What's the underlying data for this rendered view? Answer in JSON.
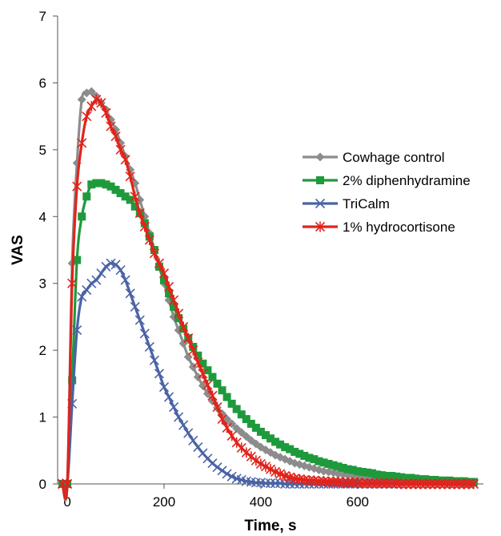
{
  "chart_data": {
    "type": "line",
    "xlabel": "Time, s",
    "ylabel": "VAS",
    "xlim": [
      -20,
      860
    ],
    "ylim": [
      0,
      7
    ],
    "xticks": [
      0,
      200,
      400,
      600
    ],
    "yticks": [
      0,
      1,
      2,
      3,
      4,
      5,
      6,
      7
    ],
    "legend_position": "right",
    "series": [
      {
        "name": "Cowhage control",
        "color": "#8c8c8c",
        "marker": "diamond",
        "x": [
          -10,
          0,
          10,
          20,
          30,
          40,
          50,
          60,
          70,
          80,
          90,
          100,
          110,
          120,
          130,
          140,
          150,
          160,
          170,
          180,
          190,
          200,
          210,
          220,
          230,
          240,
          250,
          260,
          270,
          280,
          290,
          300,
          310,
          320,
          330,
          340,
          350,
          360,
          370,
          380,
          390,
          400,
          410,
          420,
          430,
          440,
          450,
          460,
          470,
          480,
          490,
          500,
          510,
          520,
          530,
          540,
          550,
          560,
          570,
          580,
          590,
          600,
          610,
          620,
          630,
          640,
          650,
          660,
          670,
          680,
          690,
          700,
          710,
          720,
          730,
          740,
          750,
          760,
          770,
          780,
          790,
          800,
          810,
          820,
          830,
          840
        ],
        "y": [
          0,
          0,
          3.3,
          4.8,
          5.75,
          5.85,
          5.87,
          5.8,
          5.7,
          5.6,
          5.45,
          5.3,
          5.1,
          4.9,
          4.7,
          4.5,
          4.25,
          4.0,
          3.75,
          3.5,
          3.25,
          3.0,
          2.75,
          2.5,
          2.3,
          2.1,
          1.9,
          1.75,
          1.6,
          1.47,
          1.35,
          1.24,
          1.14,
          1.05,
          0.97,
          0.9,
          0.83,
          0.77,
          0.71,
          0.65,
          0.6,
          0.55,
          0.51,
          0.47,
          0.43,
          0.4,
          0.37,
          0.34,
          0.31,
          0.29,
          0.27,
          0.25,
          0.23,
          0.21,
          0.19,
          0.18,
          0.17,
          0.15,
          0.14,
          0.13,
          0.12,
          0.11,
          0.1,
          0.09,
          0.09,
          0.08,
          0.07,
          0.07,
          0.06,
          0.06,
          0.05,
          0.05,
          0.04,
          0.04,
          0.04,
          0.03,
          0.03,
          0.03,
          0.03,
          0.02,
          0.02,
          0.02,
          0.02,
          0.01,
          0.01,
          0.01
        ]
      },
      {
        "name": "2% diphenhydramine",
        "color": "#1e9a3c",
        "marker": "square",
        "x": [
          -10,
          0,
          10,
          20,
          30,
          40,
          50,
          60,
          70,
          80,
          90,
          100,
          110,
          120,
          130,
          140,
          150,
          160,
          170,
          180,
          190,
          200,
          210,
          220,
          230,
          240,
          250,
          260,
          270,
          280,
          290,
          300,
          310,
          320,
          330,
          340,
          350,
          360,
          370,
          380,
          390,
          400,
          410,
          420,
          430,
          440,
          450,
          460,
          470,
          480,
          490,
          500,
          510,
          520,
          530,
          540,
          550,
          560,
          570,
          580,
          590,
          600,
          610,
          620,
          630,
          640,
          650,
          660,
          670,
          680,
          690,
          700,
          710,
          720,
          730,
          740,
          750,
          760,
          770,
          780,
          790,
          800,
          810,
          820,
          830,
          840
        ],
        "y": [
          0,
          0,
          1.55,
          3.35,
          4.0,
          4.3,
          4.48,
          4.5,
          4.5,
          4.48,
          4.45,
          4.4,
          4.35,
          4.3,
          4.25,
          4.15,
          4.05,
          3.9,
          3.7,
          3.5,
          3.25,
          3.05,
          2.85,
          2.65,
          2.48,
          2.32,
          2.18,
          2.05,
          1.92,
          1.8,
          1.7,
          1.6,
          1.5,
          1.4,
          1.3,
          1.2,
          1.12,
          1.04,
          0.97,
          0.9,
          0.84,
          0.78,
          0.73,
          0.68,
          0.63,
          0.59,
          0.55,
          0.52,
          0.48,
          0.45,
          0.42,
          0.39,
          0.37,
          0.34,
          0.32,
          0.3,
          0.28,
          0.26,
          0.24,
          0.22,
          0.21,
          0.19,
          0.18,
          0.17,
          0.16,
          0.14,
          0.13,
          0.12,
          0.12,
          0.11,
          0.1,
          0.09,
          0.09,
          0.08,
          0.07,
          0.07,
          0.06,
          0.06,
          0.05,
          0.05,
          0.05,
          0.04,
          0.04,
          0.04,
          0.03,
          0.03
        ]
      },
      {
        "name": "TriCalm",
        "color": "#4a63a5",
        "marker": "x",
        "x": [
          -10,
          0,
          10,
          20,
          30,
          40,
          50,
          60,
          70,
          80,
          90,
          100,
          110,
          120,
          130,
          140,
          150,
          160,
          170,
          180,
          190,
          200,
          210,
          220,
          230,
          240,
          250,
          260,
          270,
          280,
          290,
          300,
          310,
          320,
          330,
          340,
          350,
          360,
          370,
          380,
          390,
          400,
          410,
          420,
          430,
          440,
          450,
          460,
          470,
          480,
          490,
          500,
          510,
          520,
          530,
          540,
          550,
          560,
          570,
          580,
          590,
          600,
          610,
          620,
          630,
          640,
          650,
          660,
          670,
          680,
          690,
          700,
          710,
          720,
          730,
          740,
          750,
          760,
          770,
          780,
          790,
          800,
          810,
          820,
          830,
          840
        ],
        "y": [
          0,
          0,
          1.2,
          2.3,
          2.8,
          2.9,
          3.0,
          3.05,
          3.15,
          3.25,
          3.3,
          3.28,
          3.2,
          3.05,
          2.85,
          2.65,
          2.45,
          2.25,
          2.05,
          1.85,
          1.65,
          1.45,
          1.3,
          1.15,
          1.0,
          0.88,
          0.76,
          0.65,
          0.55,
          0.46,
          0.38,
          0.31,
          0.25,
          0.2,
          0.15,
          0.11,
          0.08,
          0.06,
          0.04,
          0.03,
          0.02,
          0.02,
          0.01,
          0.01,
          0.01,
          0.01,
          0,
          0,
          0,
          0,
          0,
          0,
          0,
          0,
          0,
          0,
          0,
          0,
          0,
          0,
          0,
          0,
          0,
          0,
          0,
          0,
          0,
          0,
          0,
          0,
          0,
          0,
          0,
          0,
          0,
          0,
          0,
          0,
          0,
          0,
          0,
          0,
          0,
          0,
          0,
          0
        ]
      },
      {
        "name": "1% hydrocortisone",
        "color": "#e2231a",
        "marker": "asterisk",
        "x": [
          -10,
          0,
          10,
          20,
          30,
          40,
          50,
          60,
          70,
          80,
          90,
          100,
          110,
          120,
          130,
          140,
          150,
          160,
          170,
          180,
          190,
          200,
          210,
          220,
          230,
          240,
          250,
          260,
          270,
          280,
          290,
          300,
          310,
          320,
          330,
          340,
          350,
          360,
          370,
          380,
          390,
          400,
          410,
          420,
          430,
          440,
          450,
          460,
          470,
          480,
          490,
          500,
          510,
          520,
          530,
          540,
          550,
          560,
          570,
          580,
          590,
          600,
          610,
          620,
          630,
          640,
          650,
          660,
          670,
          680,
          690,
          700,
          710,
          720,
          730,
          740,
          750,
          760,
          770,
          780,
          790,
          800,
          810,
          820,
          830,
          840
        ],
        "y": [
          0,
          0,
          3.0,
          4.45,
          5.1,
          5.5,
          5.65,
          5.75,
          5.7,
          5.55,
          5.35,
          5.2,
          5.0,
          4.85,
          4.6,
          4.3,
          4.05,
          3.85,
          3.65,
          3.45,
          3.3,
          3.15,
          2.95,
          2.75,
          2.55,
          2.35,
          2.18,
          2.0,
          1.82,
          1.65,
          1.48,
          1.32,
          1.15,
          0.97,
          0.84,
          0.72,
          0.62,
          0.54,
          0.47,
          0.41,
          0.35,
          0.3,
          0.26,
          0.22,
          0.18,
          0.15,
          0.12,
          0.1,
          0.08,
          0.07,
          0.06,
          0.05,
          0.05,
          0.04,
          0.04,
          0.03,
          0.03,
          0.03,
          0.02,
          0.02,
          0.02,
          0.02,
          0.01,
          0.01,
          0.01,
          0.01,
          0.01,
          0.01,
          0.01,
          0.01,
          0,
          0,
          0,
          0,
          0,
          0,
          0,
          0,
          0,
          0,
          0,
          0,
          0,
          0,
          0,
          0
        ]
      }
    ]
  }
}
